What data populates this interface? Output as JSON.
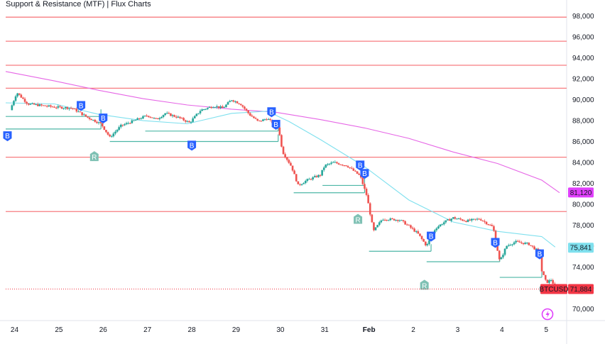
{
  "header": {
    "title": "Support & Resistance (MTF) | Flux Charts"
  },
  "colors": {
    "up": "#26a69a",
    "down": "#ef5350",
    "resistance": "#f77c80",
    "support": "#4db6a6",
    "ma_fast": "#7fe0ee",
    "ma_slow": "#e666e6",
    "break_badge": "#2962ff",
    "retest_badge": "#7fc1b4",
    "price_line": "#f23645"
  },
  "icons": {
    "logo": "bolt-icon"
  },
  "chart_data": {
    "type": "candlestick",
    "title": "Support & Resistance (MTF) | Flux Charts",
    "symbol": "BTCUSD",
    "ylim": [
      69000,
      99000
    ],
    "xlim": [
      -0.1,
      12.4
    ],
    "y_ticks": [
      70000,
      72000,
      74000,
      76000,
      78000,
      80000,
      82000,
      84000,
      86000,
      88000,
      90000,
      92000,
      94000,
      96000,
      98000
    ],
    "y_tick_labels": [
      "70,000",
      "72,000",
      "74,000",
      "76,000",
      "78,000",
      "80,000",
      "82,000",
      "84,000",
      "86,000",
      "88,000",
      "90,000",
      "92,000",
      "94,000",
      "96,000",
      "98,000"
    ],
    "x_ticks": [
      {
        "t": 0.1,
        "label": "24"
      },
      {
        "t": 1.1,
        "label": "25"
      },
      {
        "t": 2.1,
        "label": "26"
      },
      {
        "t": 3.1,
        "label": "27"
      },
      {
        "t": 4.1,
        "label": "28"
      },
      {
        "t": 5.1,
        "label": "29"
      },
      {
        "t": 6.1,
        "label": "30"
      },
      {
        "t": 7.1,
        "label": "31"
      },
      {
        "t": 8.1,
        "label": "Feb"
      },
      {
        "t": 9.1,
        "label": "2"
      },
      {
        "t": 10.1,
        "label": "3"
      },
      {
        "t": 11.1,
        "label": "4"
      },
      {
        "t": 12.1,
        "label": "5"
      }
    ],
    "resistance_levels": [
      97900,
      95600,
      93300,
      91100,
      84500,
      79300
    ],
    "support_segments": [
      {
        "t0": -0.1,
        "t1": 2.05,
        "y": 88400
      },
      {
        "t0": -0.1,
        "t1": 2.05,
        "y": 87200
      },
      {
        "t0": 2.25,
        "t1": 6.05,
        "y": 86000
      },
      {
        "t0": 3.05,
        "t1": 6.05,
        "y": 87000
      },
      {
        "t0": 6.4,
        "t1": 8.0,
        "y": 81100
      },
      {
        "t0": 7.05,
        "t1": 8.0,
        "y": 81800
      },
      {
        "t0": 8.1,
        "t1": 9.5,
        "y": 75500
      },
      {
        "t0": 9.4,
        "t1": 11.05,
        "y": 74500
      },
      {
        "t0": 11.05,
        "t1": 12.0,
        "y": 73000
      }
    ],
    "moving_averages": [
      {
        "name": "ma_slow",
        "color": "#e666e6",
        "points": [
          [
            -0.1,
            92700
          ],
          [
            1.0,
            91800
          ],
          [
            2.0,
            90900
          ],
          [
            3.0,
            90100
          ],
          [
            4.0,
            89500
          ],
          [
            5.0,
            89100
          ],
          [
            6.0,
            88800
          ],
          [
            7.0,
            88100
          ],
          [
            8.0,
            87300
          ],
          [
            9.0,
            86300
          ],
          [
            10.0,
            85000
          ],
          [
            11.0,
            83900
          ],
          [
            12.0,
            82300
          ],
          [
            12.4,
            81100
          ]
        ]
      },
      {
        "name": "ma_fast",
        "color": "#7fe0ee",
        "points": [
          [
            -0.1,
            89700
          ],
          [
            1.0,
            89600
          ],
          [
            2.0,
            88600
          ],
          [
            3.0,
            88000
          ],
          [
            4.0,
            87700
          ],
          [
            5.0,
            88700
          ],
          [
            5.8,
            88900
          ],
          [
            6.3,
            87900
          ],
          [
            7.0,
            86200
          ],
          [
            8.0,
            83600
          ],
          [
            9.0,
            80400
          ],
          [
            10.0,
            78300
          ],
          [
            11.0,
            77400
          ],
          [
            12.0,
            76900
          ],
          [
            12.3,
            75900
          ]
        ]
      }
    ],
    "price_tags": [
      {
        "value": 81120,
        "label": "81,120",
        "color": "#e040fb",
        "text_color": "#ffffff"
      },
      {
        "value": 75841,
        "label": "75,841",
        "color": "#7fe0ee",
        "text_color": "#131722"
      },
      {
        "value": 71884,
        "label": "71,884",
        "color": "#f23645",
        "text_color": "#ffffff",
        "symbol": "BTCUSD"
      }
    ],
    "current_price": 71884,
    "break_markers": [
      {
        "t": -0.06,
        "y": 86500,
        "label": "B"
      },
      {
        "t": 1.6,
        "y": 89400,
        "label": "B"
      },
      {
        "t": 2.1,
        "y": 88200,
        "label": "B"
      },
      {
        "t": 4.1,
        "y": 85600,
        "label": "B"
      },
      {
        "t": 5.9,
        "y": 88800,
        "label": "B"
      },
      {
        "t": 6.0,
        "y": 87600,
        "label": "B"
      },
      {
        "t": 7.9,
        "y": 83700,
        "label": "B"
      },
      {
        "t": 8.0,
        "y": 82900,
        "label": "B"
      },
      {
        "t": 9.5,
        "y": 76900,
        "label": "B"
      },
      {
        "t": 10.95,
        "y": 76300,
        "label": "B"
      },
      {
        "t": 11.95,
        "y": 75200,
        "label": "B"
      }
    ],
    "retest_markers": [
      {
        "t": 1.9,
        "y": 84600,
        "label": "R"
      },
      {
        "t": 7.85,
        "y": 78600,
        "label": "R"
      },
      {
        "t": 9.35,
        "y": 72300,
        "label": "R"
      }
    ],
    "anchors": [
      {
        "t": 0.0,
        "p": 89000
      },
      {
        "t": 0.15,
        "p": 90700
      },
      {
        "t": 0.4,
        "p": 89600
      },
      {
        "t": 1.0,
        "p": 89300
      },
      {
        "t": 1.4,
        "p": 89200
      },
      {
        "t": 1.75,
        "p": 88300
      },
      {
        "t": 2.05,
        "p": 87700
      },
      {
        "t": 2.25,
        "p": 86400
      },
      {
        "t": 2.5,
        "p": 87500
      },
      {
        "t": 2.8,
        "p": 88000
      },
      {
        "t": 3.1,
        "p": 88500
      },
      {
        "t": 3.3,
        "p": 88100
      },
      {
        "t": 3.5,
        "p": 88700
      },
      {
        "t": 3.8,
        "p": 88300
      },
      {
        "t": 4.05,
        "p": 87800
      },
      {
        "t": 4.3,
        "p": 89000
      },
      {
        "t": 4.6,
        "p": 89400
      },
      {
        "t": 4.8,
        "p": 89200
      },
      {
        "t": 5.0,
        "p": 90000
      },
      {
        "t": 5.2,
        "p": 89600
      },
      {
        "t": 5.4,
        "p": 88600
      },
      {
        "t": 5.6,
        "p": 87900
      },
      {
        "t": 5.8,
        "p": 88200
      },
      {
        "t": 6.05,
        "p": 87400
      },
      {
        "t": 6.15,
        "p": 85000
      },
      {
        "t": 6.35,
        "p": 83600
      },
      {
        "t": 6.5,
        "p": 81800
      },
      {
        "t": 6.7,
        "p": 82300
      },
      {
        "t": 7.0,
        "p": 82800
      },
      {
        "t": 7.1,
        "p": 83700
      },
      {
        "t": 7.3,
        "p": 84000
      },
      {
        "t": 7.6,
        "p": 83700
      },
      {
        "t": 7.9,
        "p": 82700
      },
      {
        "t": 8.05,
        "p": 80800
      },
      {
        "t": 8.2,
        "p": 77400
      },
      {
        "t": 8.4,
        "p": 78600
      },
      {
        "t": 8.8,
        "p": 78500
      },
      {
        "t": 9.0,
        "p": 77900
      },
      {
        "t": 9.2,
        "p": 77200
      },
      {
        "t": 9.4,
        "p": 76000
      },
      {
        "t": 9.6,
        "p": 77700
      },
      {
        "t": 9.8,
        "p": 78300
      },
      {
        "t": 10.0,
        "p": 78700
      },
      {
        "t": 10.3,
        "p": 78400
      },
      {
        "t": 10.6,
        "p": 78600
      },
      {
        "t": 10.9,
        "p": 77800
      },
      {
        "t": 11.05,
        "p": 74500
      },
      {
        "t": 11.2,
        "p": 76000
      },
      {
        "t": 11.4,
        "p": 76400
      },
      {
        "t": 11.7,
        "p": 76200
      },
      {
        "t": 11.95,
        "p": 75400
      },
      {
        "t": 12.0,
        "p": 73600
      },
      {
        "t": 12.1,
        "p": 72500
      },
      {
        "t": 12.22,
        "p": 72800
      },
      {
        "t": 12.3,
        "p": 71884
      }
    ]
  }
}
